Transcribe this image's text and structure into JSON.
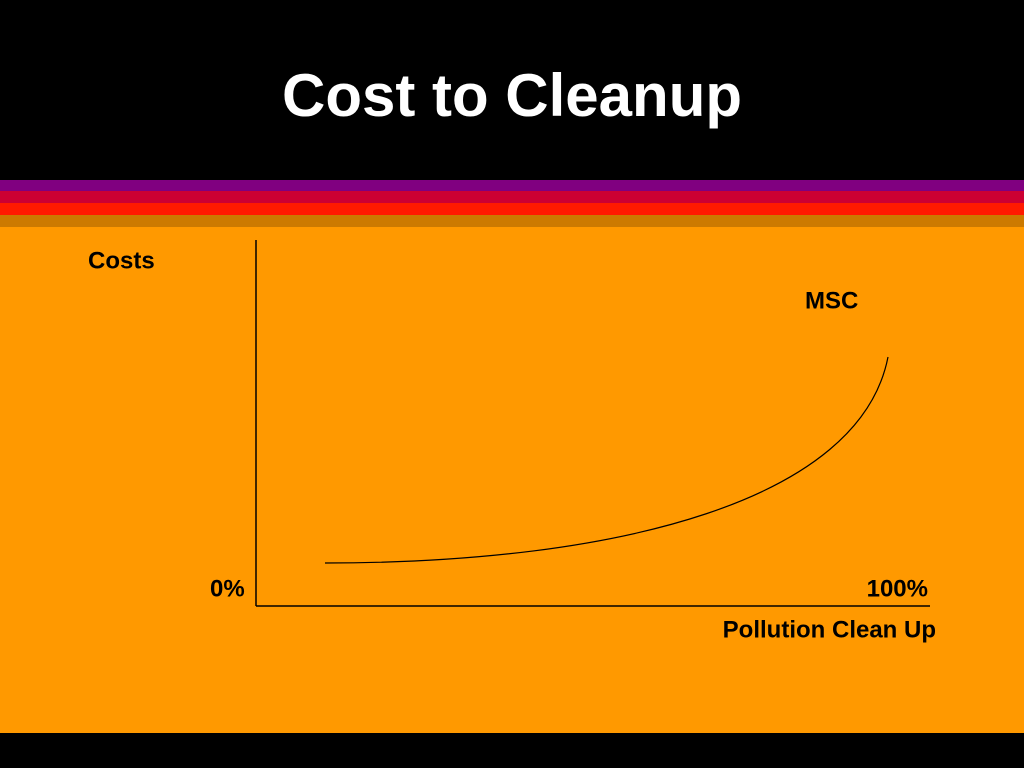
{
  "title": "Cost to Cleanup",
  "diagram": {
    "y_axis_label": "Costs",
    "curve_label": "MSC",
    "x_start_label": "0%",
    "x_end_label": "100%",
    "x_axis_label": "Pollution Clean Up"
  }
}
